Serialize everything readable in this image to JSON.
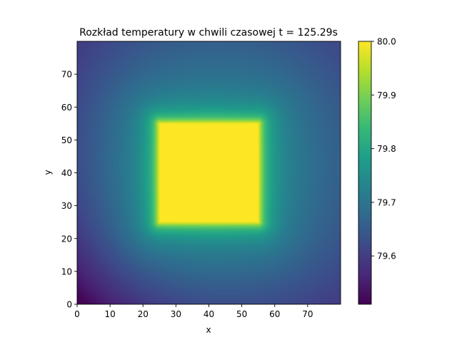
{
  "chart_data": {
    "type": "heatmap",
    "title": "Rozkład temperatury w chwili czasowej t = 125.29s",
    "xlabel": "x",
    "ylabel": "y",
    "xlim": [
      0,
      80
    ],
    "ylim": [
      0,
      80
    ],
    "x_ticks": [
      0,
      10,
      20,
      30,
      40,
      50,
      60,
      70
    ],
    "y_ticks": [
      0,
      10,
      20,
      30,
      40,
      50,
      60,
      70
    ],
    "colormap": "viridis",
    "grid": false,
    "colorbar": {
      "position": "right",
      "range": [
        79.51,
        80.0
      ],
      "ticks": [
        79.6,
        79.7,
        79.8,
        79.9,
        80.0
      ],
      "tick_labels": [
        "79.6",
        "79.7",
        "79.8",
        "79.9",
        "80.0"
      ]
    },
    "hot_region": {
      "x_range": [
        25,
        55
      ],
      "y_range": [
        25,
        55
      ],
      "value": 80.0
    },
    "corner_values": {
      "bottom_left": 79.51,
      "top_left": 79.6,
      "bottom_right": 79.6,
      "top_right": 79.62
    },
    "viridis_stops": [
      "#440154",
      "#482878",
      "#3e4989",
      "#31688e",
      "#26828e",
      "#1f9e89",
      "#35b779",
      "#6ece58",
      "#b5de2b",
      "#fde725"
    ]
  }
}
